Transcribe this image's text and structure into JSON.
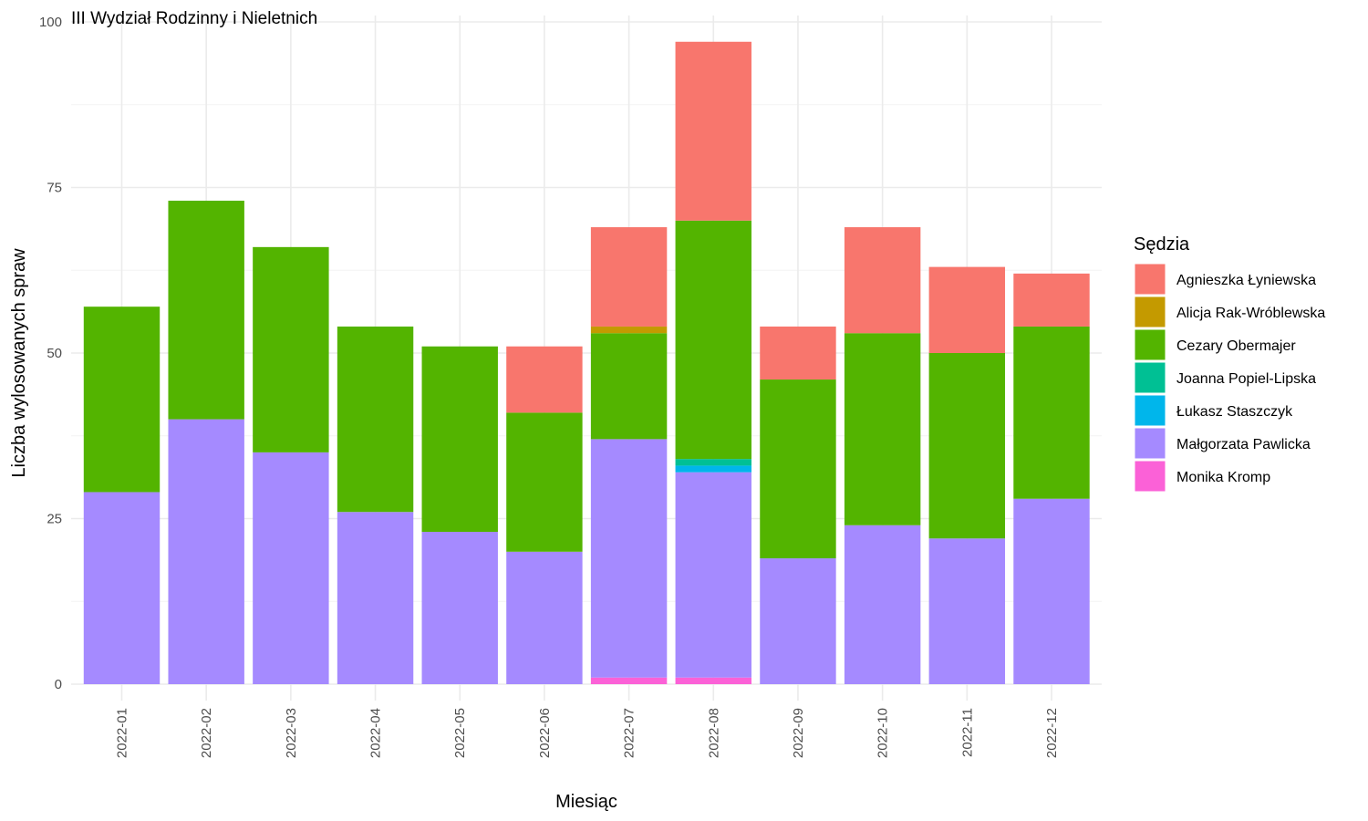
{
  "chart_data": {
    "type": "bar",
    "stacked": true,
    "title": "III Wydział Rodzinny i Nieletnich",
    "xlabel": "Miesiąc",
    "ylabel": "Liczba wylosowanych spraw",
    "ylim": [
      0,
      100
    ],
    "yticks": [
      0,
      25,
      50,
      75,
      100
    ],
    "grid": true,
    "legend_title": "Sędzia",
    "legend_position": "right",
    "categories": [
      "2022-01",
      "2022-02",
      "2022-03",
      "2022-04",
      "2022-05",
      "2022-06",
      "2022-07",
      "2022-08",
      "2022-09",
      "2022-10",
      "2022-11",
      "2022-12"
    ],
    "series": [
      {
        "name": "Agnieszka Łyniewska",
        "color": "#F8766D",
        "values": [
          0,
          0,
          0,
          0,
          0,
          10,
          15,
          27,
          8,
          16,
          13,
          8
        ]
      },
      {
        "name": "Alicja Rak-Wróblewska",
        "color": "#C49A00",
        "values": [
          0,
          0,
          0,
          0,
          0,
          0,
          1,
          0,
          0,
          0,
          0,
          0
        ]
      },
      {
        "name": "Cezary Obermajer",
        "color": "#53B400",
        "values": [
          28,
          33,
          31,
          28,
          28,
          21,
          16,
          36,
          27,
          29,
          28,
          26
        ]
      },
      {
        "name": "Joanna Popiel-Lipska",
        "color": "#00C094",
        "values": [
          0,
          0,
          0,
          0,
          0,
          0,
          0,
          1,
          0,
          0,
          0,
          0
        ]
      },
      {
        "name": "Łukasz Staszczyk",
        "color": "#00B6EB",
        "values": [
          0,
          0,
          0,
          0,
          0,
          0,
          0,
          1,
          0,
          0,
          0,
          0
        ]
      },
      {
        "name": "Małgorzata Pawlicka",
        "color": "#A58AFF",
        "values": [
          29,
          40,
          35,
          26,
          23,
          20,
          36,
          31,
          19,
          24,
          22,
          28
        ]
      },
      {
        "name": "Monika Kromp",
        "color": "#FB61D7",
        "values": [
          0,
          0,
          0,
          0,
          0,
          0,
          1,
          1,
          0,
          0,
          0,
          0
        ]
      }
    ]
  }
}
